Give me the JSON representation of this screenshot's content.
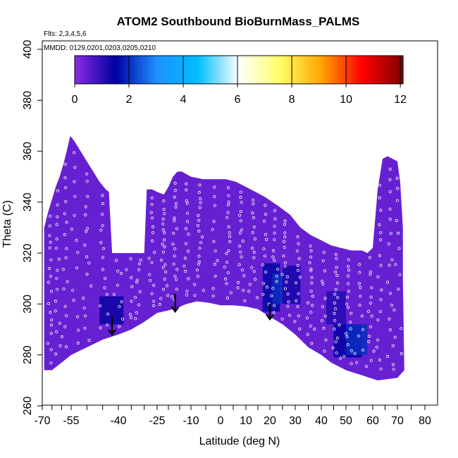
{
  "chart_data": {
    "type": "heatmap",
    "title": "ATOM2 Southbound BioBurnMass_PALMS",
    "annotations": [
      "Flts: 2,3,4,5,6",
      "MMDD: 0129,0201,0203,0205,0210"
    ],
    "xlabel": "Latitude (deg N)",
    "ylabel": "Theta (C)",
    "xlim": [
      -70,
      80
    ],
    "ylim": [
      260,
      400
    ],
    "x_ticks": [
      -70,
      -55,
      -40,
      -25,
      -10,
      0,
      10,
      20,
      30,
      40,
      50,
      60,
      70,
      80
    ],
    "x_tick_labels": [
      "-70",
      "-55",
      "-40",
      "-25",
      "-10",
      "0",
      "10",
      "20",
      "30",
      "40",
      "50",
      "60",
      "70",
      "80"
    ],
    "y_ticks": [
      260,
      280,
      300,
      320,
      340,
      360,
      380,
      400
    ],
    "y_tick_labels": [
      "260",
      "280",
      "300",
      "320",
      "340",
      "360",
      "380",
      "400"
    ],
    "colorbar": {
      "min": 0,
      "max": 12.1,
      "ticks": [
        0,
        2,
        4,
        6,
        8,
        10,
        12
      ],
      "tick_labels": [
        "0",
        "2",
        "4",
        "6",
        "8",
        "10",
        "12"
      ],
      "colors": [
        "#8a2be2",
        "#0000a0",
        "#1e90ff",
        "#00bfff",
        "#ffffff",
        "#ffff66",
        "#ffa500",
        "#ff0000",
        "#800000"
      ]
    },
    "background_value": 0.4,
    "field_outline": {
      "top": [
        [
          -69,
          330
        ],
        [
          -67,
          336
        ],
        [
          -65,
          341
        ],
        [
          -63,
          346
        ],
        [
          -61,
          350
        ],
        [
          -59,
          355
        ],
        [
          -57,
          361
        ],
        [
          -55.5,
          366
        ],
        [
          -54,
          364
        ],
        [
          -52,
          360
        ],
        [
          -50,
          356
        ],
        [
          -48,
          352
        ],
        [
          -46,
          348
        ],
        [
          -44,
          345
        ],
        [
          -43,
          344
        ],
        [
          -42,
          320
        ],
        [
          -30,
          320
        ],
        [
          -29,
          345
        ],
        [
          -27,
          345
        ],
        [
          -25,
          344
        ],
        [
          -22,
          343
        ],
        [
          -20,
          346
        ],
        [
          -18,
          350
        ],
        [
          -16,
          352
        ],
        [
          -14,
          352
        ],
        [
          -12,
          351
        ],
        [
          -10,
          350
        ],
        [
          -6,
          349
        ],
        [
          -2,
          349
        ],
        [
          2,
          349
        ],
        [
          6,
          348
        ],
        [
          10,
          346
        ],
        [
          14,
          344
        ],
        [
          18,
          342
        ],
        [
          24,
          338
        ],
        [
          28,
          335
        ],
        [
          32,
          330
        ],
        [
          36,
          327
        ],
        [
          40,
          325
        ],
        [
          44,
          323
        ],
        [
          48,
          322
        ],
        [
          52,
          321
        ],
        [
          56,
          321
        ],
        [
          58,
          320
        ],
        [
          60,
          322
        ],
        [
          62,
          345
        ],
        [
          64,
          357
        ],
        [
          66,
          358
        ],
        [
          68,
          357
        ],
        [
          70,
          356
        ],
        [
          71,
          348
        ],
        [
          72,
          330
        ],
        [
          72,
          310
        ],
        [
          72.5,
          274
        ]
      ],
      "bottom": [
        [
          72.5,
          274
        ],
        [
          70,
          271
        ],
        [
          62,
          270
        ],
        [
          56,
          272
        ],
        [
          50,
          274
        ],
        [
          44,
          277
        ],
        [
          40,
          280
        ],
        [
          35,
          283
        ],
        [
          30,
          288
        ],
        [
          25,
          292
        ],
        [
          20,
          295
        ],
        [
          15,
          298
        ],
        [
          10,
          299
        ],
        [
          5,
          299.5
        ],
        [
          0,
          299.5
        ],
        [
          -4,
          300.5
        ],
        [
          -8,
          301
        ],
        [
          -12,
          300
        ],
        [
          -16,
          298.5
        ],
        [
          -20,
          297.5
        ],
        [
          -25,
          296.5
        ],
        [
          -30,
          293
        ],
        [
          -35,
          290
        ],
        [
          -40,
          288
        ],
        [
          -45,
          286
        ],
        [
          -50,
          283
        ],
        [
          -55,
          280
        ],
        [
          -60,
          277
        ],
        [
          -65,
          274
        ],
        [
          -69,
          274
        ]
      ]
    },
    "enhanced_patches": [
      {
        "x": [
          -46,
          -38
        ],
        "y": [
          292,
          303
        ],
        "value": 1.4
      },
      {
        "x": [
          17,
          24
        ],
        "y": [
          297,
          316
        ],
        "value": 1.6
      },
      {
        "x": [
          21,
          25
        ],
        "y": [
          300,
          312
        ],
        "value": 2.0
      },
      {
        "x": [
          25,
          32
        ],
        "y": [
          300,
          315
        ],
        "value": 1.3
      },
      {
        "x": [
          45,
          56
        ],
        "y": [
          279,
          292
        ],
        "value": 1.5
      },
      {
        "x": [
          50,
          58
        ],
        "y": [
          280,
          292
        ],
        "value": 2.0
      },
      {
        "x": [
          42,
          50
        ],
        "y": [
          292,
          305
        ],
        "value": 1.1
      }
    ],
    "flight_arrows": [
      {
        "x": -42,
        "y_top": 295,
        "y_bottom": 288
      },
      {
        "x": -17,
        "y_top": 304,
        "y_bottom": 297
      },
      {
        "x": 20,
        "y_top": 300,
        "y_bottom": 294
      }
    ]
  }
}
